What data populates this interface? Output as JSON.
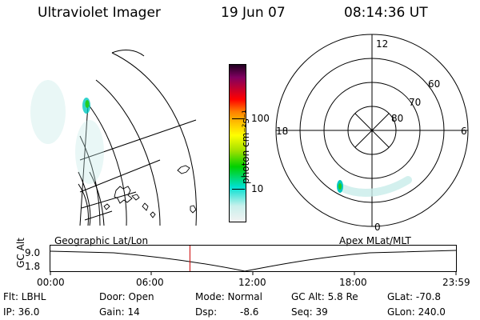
{
  "header": {
    "title": "Ultraviolet Imager",
    "date": "19 Jun 07",
    "time": "08:14:36 UT"
  },
  "colorbar": {
    "unit_label": "photon cm⁻²s⁻¹",
    "tick_100": "100",
    "tick_10": "10",
    "scale": "log",
    "colors": [
      "#f2f2f2",
      "#00e0d0",
      "#00d000",
      "#a0e000",
      "#ffff00",
      "#ffc000",
      "#ff8000",
      "#ff0000",
      "#c00030",
      "#800060",
      "#400040",
      "#000000"
    ]
  },
  "polar_plot": {
    "mlt_top": "12",
    "mlt_left": "18",
    "mlt_right": "6",
    "mlt_bottom": "0",
    "lat_60": "60",
    "lat_70": "70",
    "lat_80": "80"
  },
  "labels": {
    "geo": "Geographic Lat/Lon",
    "apex": "Apex MLat/MLT"
  },
  "altitude_plot": {
    "axis_label": "GC Alt",
    "y_max": "9.0",
    "y_min": "1.8",
    "time_ticks": [
      "00:00",
      "06:00",
      "12:00",
      "18:00",
      "23:59"
    ],
    "current_time_fraction": 0.344
  },
  "info": {
    "filter": "Flt: LBHL",
    "door": "Door: Open",
    "mode": "Mode: Normal",
    "gc_alt": "GC Alt: 5.8 Re",
    "glat": "GLat: -70.8",
    "ip": "IP: 36.0",
    "gain": "Gain: 14",
    "dsp_label": "Dsp:",
    "dsp_value": "-8.6",
    "seq": "Seq: 39",
    "glon": "GLon: 240.0"
  }
}
